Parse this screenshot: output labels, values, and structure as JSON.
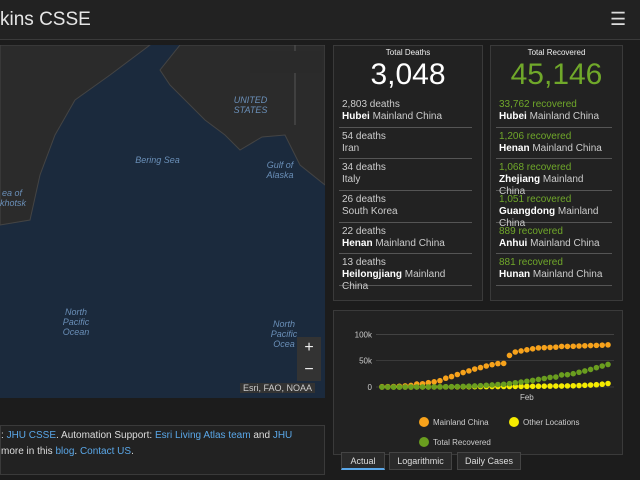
{
  "header": {
    "title": "kins CSSE"
  },
  "map": {
    "labels": [
      "UNITED STATES",
      "Bering Sea",
      "Gulf of Alaska",
      "ea of khotsk",
      "North Pacific Ocean",
      "North Pacific Ocea"
    ],
    "attribution": "Esri, FAO, NOAA"
  },
  "deaths": {
    "title": "Total Deaths",
    "total": "3,048",
    "items": [
      {
        "count": "2,803 deaths",
        "region": "Hubei",
        "country": "Mainland China"
      },
      {
        "count": "54 deaths",
        "region": "",
        "country": "Iran"
      },
      {
        "count": "34 deaths",
        "region": "",
        "country": "Italy"
      },
      {
        "count": "26 deaths",
        "region": "",
        "country": "South Korea"
      },
      {
        "count": "22 deaths",
        "region": "Henan",
        "country": "Mainland China"
      },
      {
        "count": "13 deaths",
        "region": "Heilongjiang",
        "country": "Mainland China"
      }
    ]
  },
  "recovered": {
    "title": "Total Recovered",
    "total": "45,146",
    "items": [
      {
        "count": "33,762 recovered",
        "region": "Hubei",
        "country": "Mainland China"
      },
      {
        "count": "1,206 recovered",
        "region": "Henan",
        "country": "Mainland China"
      },
      {
        "count": "1,068 recovered",
        "region": "Zhejiang",
        "country": "Mainland China"
      },
      {
        "count": "1,051 recovered",
        "region": "Guangdong",
        "country": "Mainland China"
      },
      {
        "count": "889 recovered",
        "region": "Anhui",
        "country": "Mainland China"
      },
      {
        "count": "881 recovered",
        "region": "Hunan",
        "country": "Mainland China"
      }
    ]
  },
  "chart_data": {
    "type": "line",
    "categories": [
      null,
      null,
      null,
      null,
      null,
      null,
      null,
      null,
      null,
      null,
      null,
      null,
      null,
      null,
      null,
      null,
      null,
      null,
      null,
      null,
      null,
      null,
      null,
      null,
      null,
      "Feb",
      null,
      null,
      null,
      null,
      null,
      null,
      null,
      null,
      null,
      null,
      null,
      null,
      null,
      null
    ],
    "series": [
      {
        "name": "Mainland China",
        "color": "#f7a21b",
        "values": [
          548,
          643,
          920,
          1406,
          2075,
          2877,
          5509,
          6087,
          8141,
          9802,
          11891,
          16630,
          19716,
          23707,
          27440,
          30587,
          34110,
          36814,
          39829,
          42354,
          44386,
          44759,
          59895,
          66358,
          68413,
          70513,
          72434,
          74211,
          74619,
          75077,
          75550,
          77001,
          77022,
          77241,
          77754,
          78166,
          78600,
          78928,
          79356,
          79932
        ]
      },
      {
        "name": "Other Locations",
        "color": "#f5eb00",
        "values": [
          7,
          11,
          21,
          28,
          43,
          73,
          82,
          114,
          134,
          184,
          258,
          295,
          362,
          443,
          555,
          574,
          614,
          707,
          773,
          826,
          904,
          965,
          1016,
          1096,
          1153,
          1219,
          1320,
          1472,
          1535,
          1685,
          1751,
          1833,
          2129,
          2341,
          2740,
          3210,
          3727,
          4342,
          5293,
          6619
        ]
      },
      {
        "name": "Total Recovered",
        "color": "#6a9e1f",
        "values": [
          28,
          30,
          36,
          39,
          52,
          61,
          107,
          126,
          143,
          222,
          284,
          472,
          623,
          852,
          1124,
          1487,
          2011,
          2616,
          3244,
          3946,
          4683,
          5150,
          6295,
          8058,
          9395,
          10865,
          12583,
          14352,
          16121,
          18177,
          18890,
          22886,
          23394,
          25227,
          27905,
          30384,
          33277,
          36711,
          39782,
          42716
        ]
      }
    ],
    "ylim": [
      0,
      110000
    ],
    "yticks": [
      0,
      {
        "value": 50000,
        "label": "50k"
      },
      {
        "value": 100000,
        "label": "100k"
      }
    ],
    "grid": true
  },
  "tabs": [
    "Actual",
    "Logarithmic",
    "Daily Cases"
  ],
  "footer": {
    "lines": [
      [
        {
          "text": ": "
        },
        {
          "text": "JHU CSSE",
          "link": true
        },
        {
          "text": ". Automation Support: "
        },
        {
          "text": "Esri Living Atlas team",
          "link": true
        },
        {
          "text": " and "
        },
        {
          "text": "JHU",
          "link": true
        }
      ],
      [
        {
          "text": "more in this "
        },
        {
          "text": "blog",
          "link": true
        },
        {
          "text": ". "
        },
        {
          "text": "Contact US",
          "link": true
        },
        {
          "text": "."
        }
      ]
    ]
  }
}
